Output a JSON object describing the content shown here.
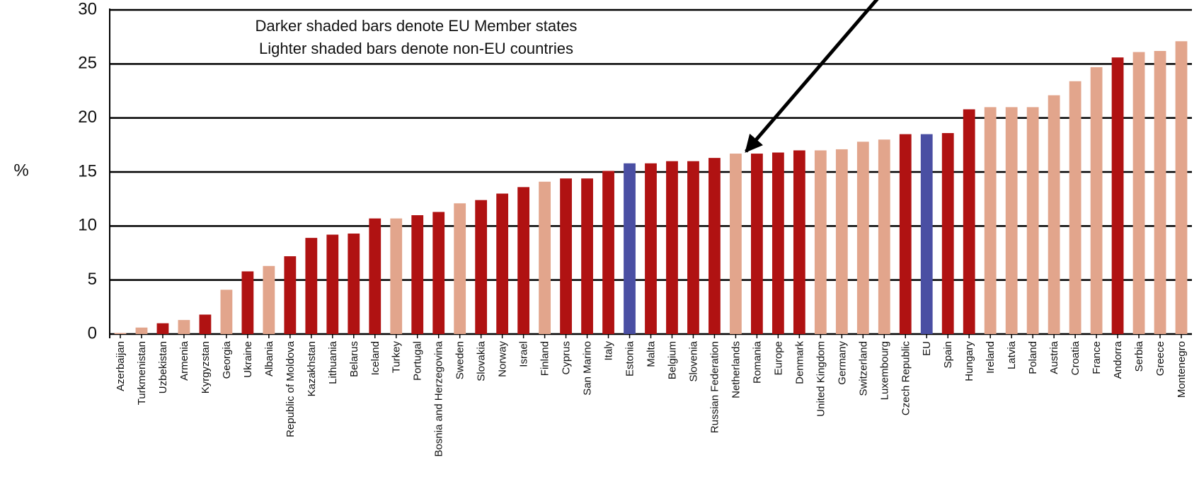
{
  "chart_data": {
    "type": "bar",
    "ylabel": "%",
    "annotations": [
      "Darker shaded bars denote EU Member states",
      "Lighter shaded bars denote non-EU countries"
    ],
    "categories": [
      "Azerbaijan",
      "Turkmenistan",
      "Uzbekistan",
      "Armenia",
      "Kyrgyzstan",
      "Georgia",
      "Ukraine",
      "Albania",
      "Republic of Moldova",
      "Kazakhstan",
      "Lithuania",
      "Belarus",
      "Iceland",
      "Turkey",
      "Portugal",
      "Bosnia and Herzegovina",
      "Sweden",
      "Slovakia",
      "Norway",
      "Israel",
      "Finland",
      "Cyprus",
      "San Marino",
      "Italy",
      "Estonia",
      "Malta",
      "Belgium",
      "Slovenia",
      "Russian Federation",
      "Netherlands",
      "Romania",
      "Europe",
      "Denmark",
      "United Kingdom",
      "Germany",
      "Switzerland",
      "Luxembourg",
      "Czech Republic",
      "EU",
      "Spain",
      "Hungary",
      "Ireland",
      "Latvia",
      "Poland",
      "Austria",
      "Croatia",
      "France",
      "Andorra",
      "Serbia",
      "Greece",
      "Montenegro"
    ],
    "values": [
      0.1,
      0.6,
      1.0,
      1.3,
      1.8,
      4.1,
      5.8,
      6.3,
      7.2,
      8.9,
      9.2,
      9.3,
      10.7,
      10.7,
      11.0,
      11.3,
      12.1,
      12.4,
      13.0,
      13.6,
      14.1,
      14.4,
      14.4,
      15.1,
      15.8,
      15.8,
      16.0,
      16.0,
      16.3,
      16.7,
      16.7,
      16.8,
      17.0,
      17.0,
      17.1,
      17.8,
      18.0,
      18.5,
      18.5,
      18.6,
      20.8,
      21.0,
      21.0,
      21.0,
      22.1,
      23.4,
      24.7,
      25.6,
      26.1,
      26.2,
      27.1
    ],
    "colors": [
      "#e2a58c",
      "#e2a58c",
      "#b01212",
      "#e2a58c",
      "#b01212",
      "#e2a58c",
      "#b01212",
      "#e2a58c",
      "#b01212",
      "#b01212",
      "#b01212",
      "#b01212",
      "#b01212",
      "#e2a58c",
      "#b01212",
      "#b01212",
      "#e2a58c",
      "#b01212",
      "#b01212",
      "#b01212",
      "#e2a58c",
      "#b01212",
      "#b01212",
      "#b01212",
      "#4a4fa3",
      "#b01212",
      "#b01212",
      "#b01212",
      "#b01212",
      "#e2a58c",
      "#b01212",
      "#b01212",
      "#b01212",
      "#e2a58c",
      "#e2a58c",
      "#e2a58c",
      "#e2a58c",
      "#b01212",
      "#4a4fa3",
      "#b01212",
      "#b01212",
      "#e2a58c",
      "#e2a58c",
      "#e2a58c",
      "#e2a58c",
      "#e2a58c",
      "#e2a58c",
      "#b01212",
      "#e2a58c",
      "#e2a58c",
      "#e2a58c"
    ],
    "ylim": [
      0,
      30
    ],
    "yticks": [
      0,
      5,
      10,
      15,
      20,
      25,
      30
    ],
    "grid": true
  }
}
